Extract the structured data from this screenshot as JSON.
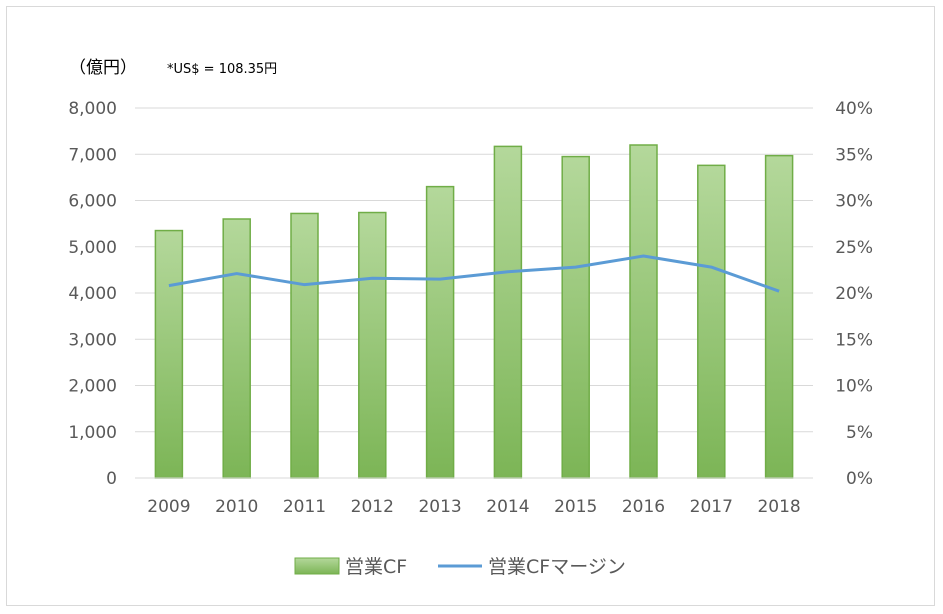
{
  "chart_data": {
    "type": "bar",
    "unit_label": "（億円）",
    "note": "*US$ = 108.35円",
    "categories": [
      "2009",
      "2010",
      "2011",
      "2012",
      "2013",
      "2014",
      "2015",
      "2016",
      "2017",
      "2018"
    ],
    "series": [
      {
        "name": "営業CF",
        "type": "bar",
        "axis": "left",
        "values": [
          5350,
          5600,
          5720,
          5740,
          6300,
          7170,
          6950,
          7200,
          6760,
          6970
        ]
      },
      {
        "name": "営業CFマージン",
        "type": "line",
        "axis": "right",
        "values": [
          20.8,
          22.1,
          20.9,
          21.6,
          21.5,
          22.3,
          22.8,
          24.0,
          22.8,
          20.2
        ]
      }
    ],
    "ylim_left": [
      0,
      8000
    ],
    "yticks_left": [
      "0",
      "1,000",
      "2,000",
      "3,000",
      "4,000",
      "5,000",
      "6,000",
      "7,000",
      "8,000"
    ],
    "ylim_right": [
      0,
      40
    ],
    "yticks_right": [
      "0%",
      "5%",
      "10%",
      "15%",
      "20%",
      "25%",
      "30%",
      "35%",
      "40%"
    ],
    "grid": true,
    "legend_position": "bottom",
    "colors": {
      "bar_top": "#a9d18e",
      "bar_bottom": "#70ad47",
      "bar_border": "#70ad47",
      "line": "#5b9bd5",
      "grid": "#d9d9d9"
    }
  }
}
